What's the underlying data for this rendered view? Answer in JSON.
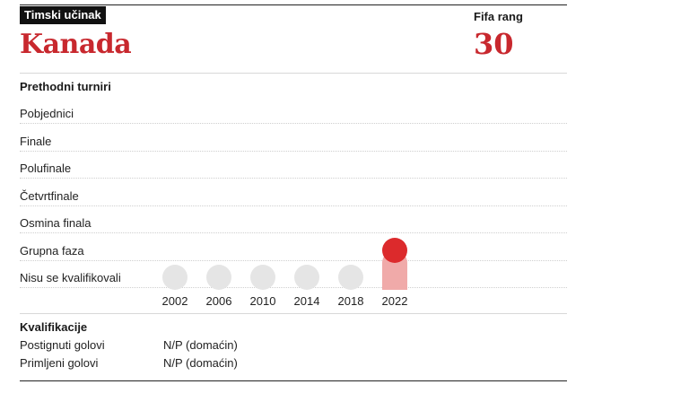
{
  "header": {
    "badge": "Timski učinak",
    "team": "Kanada",
    "fifa_label": "Fifa rang",
    "fifa_rank": "30"
  },
  "tournaments": {
    "title": "Prethodni turniri",
    "stages": [
      "Pobjednici",
      "Finale",
      "Polufinale",
      "Četvrtfinale",
      "Osmina finala",
      "Grupna faza",
      "Nisu se kvalifikovali"
    ],
    "years": [
      "2002",
      "2006",
      "2010",
      "2014",
      "2018",
      "2022"
    ],
    "results": [
      "Nisu se kvalifikovali",
      "Nisu se kvalifikovali",
      "Nisu se kvalifikovali",
      "Nisu se kvalifikovali",
      "Nisu se kvalifikovali",
      "Grupna faza"
    ],
    "colors": {
      "inactive": "#e5e5e5",
      "highlight": "#dc2a2c",
      "highlight_bar": "#f0aaa9"
    }
  },
  "qualifications": {
    "title": "Kvalifikacije",
    "rows": [
      {
        "label": "Postignuti golovi",
        "value": "N/P (domaćin)"
      },
      {
        "label": "Primljeni golovi",
        "value": "N/P (domaćin)"
      }
    ]
  }
}
